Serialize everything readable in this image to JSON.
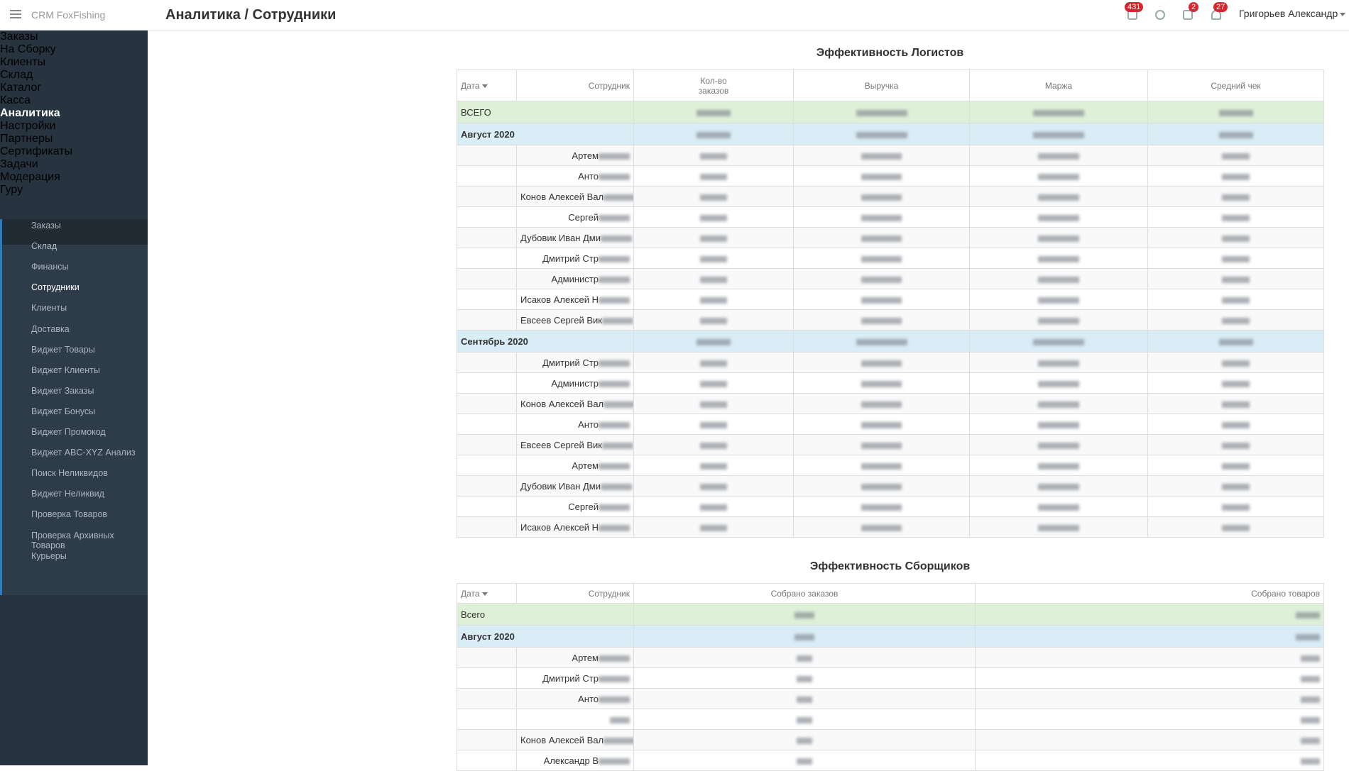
{
  "header": {
    "logo": "CRM FoxFishing",
    "title": "Аналитика / Сотрудники",
    "badges": [
      "431",
      "2",
      "27"
    ],
    "user": "Григорьев Александр"
  },
  "sidebar": {
    "items_top": [
      "Заказы",
      "На Сборку",
      "Клиенты",
      "Склад",
      "Каталог",
      "Касса",
      "Аналитика"
    ],
    "submenu": [
      "Заказы",
      "Склад",
      "Финансы",
      "Сотрудники",
      "Клиенты",
      "Доставка",
      "Виджет Товары",
      "Виджет Клиенты",
      "Виджет Заказы",
      "Виджет Бонусы",
      "Виджет Промокод",
      "Виджет ABC-XYZ Анализ",
      "Поиск Неликвидов",
      "Виджет Неликвид",
      "Проверка Товаров",
      "Проверка Архивных Товаров",
      "Курьеры"
    ],
    "items_bottom": [
      "Настройки",
      "Партнеры",
      "Сертификаты",
      "Задачи",
      "Модерация",
      "Гуру"
    ]
  },
  "table1": {
    "title": "Эффективность Логистов",
    "columns": [
      "Дата",
      "Сотрудник",
      "Кол-во заказов",
      "Выручка",
      "Маржа",
      "Средний чек"
    ],
    "total": "ВСЕГО",
    "groups": [
      {
        "month": "Август 2020",
        "employees": [
          "Артем",
          "Анто",
          "Конов Алексей Вал",
          "Сергей",
          "Дубовик Иван Дми",
          "Дмитрий Стр",
          "Администр",
          "Исаков Алексей Н",
          "Евсеев Сергей Вик"
        ]
      },
      {
        "month": "Сентябрь 2020",
        "employees": [
          "Дмитрий Стр",
          "Администр",
          "Конов Алексей Вал",
          "Анто",
          "Евсеев Сергей Вик",
          "Артем",
          "Дубовик Иван Дми",
          "Сергей",
          "Исаков Алексей Н"
        ]
      }
    ]
  },
  "table2": {
    "title": "Эффективность Сборщиков",
    "columns": [
      "Дата",
      "Сотрудник",
      "Собрано заказов",
      "Собрано товаров"
    ],
    "total": "Всего",
    "groups": [
      {
        "month": "Август 2020",
        "employees": [
          "Артем",
          "Дмитрий Стр",
          "Анто",
          null,
          "Конов Алексей Вал",
          "Александр В"
        ]
      }
    ]
  }
}
